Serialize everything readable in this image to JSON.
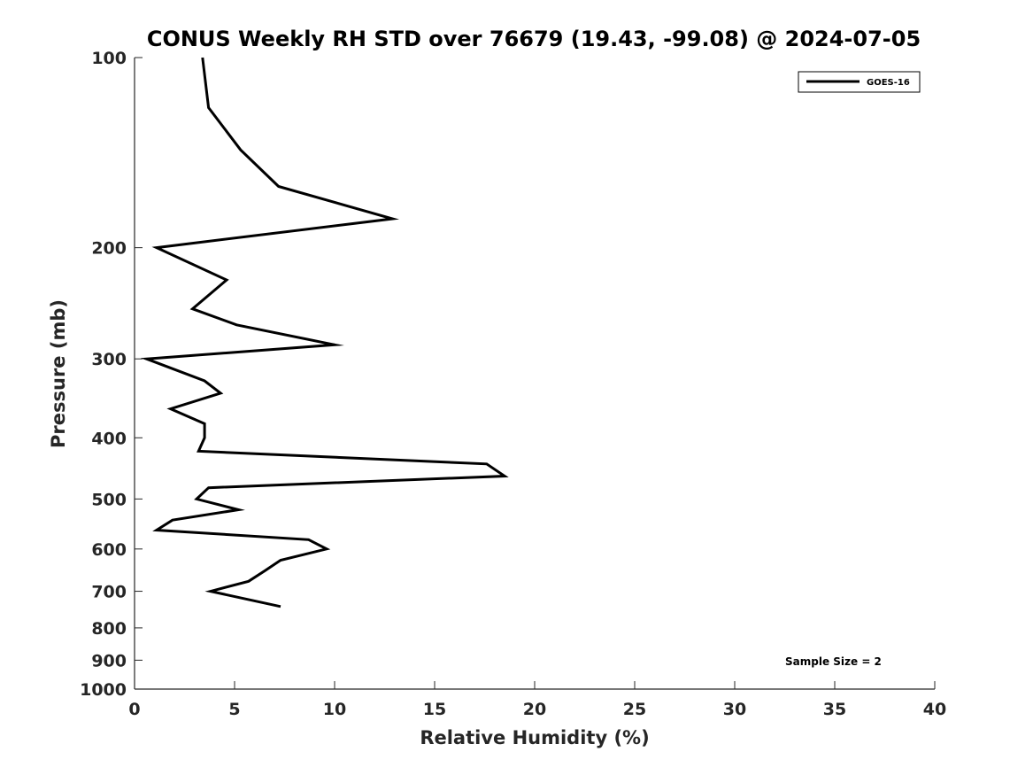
{
  "chart_data": {
    "type": "line",
    "title": "CONUS Weekly RH STD over 76679 (19.43, -99.08) @ 2024-07-05",
    "xlabel": "Relative Humidity (%)",
    "ylabel": "Pressure (mb)",
    "xlim": [
      0,
      40
    ],
    "ylim": [
      100,
      1000
    ],
    "y_scale": "log",
    "y_reversed": true,
    "x_ticks": [
      "0",
      "5",
      "10",
      "15",
      "20",
      "25",
      "30",
      "35",
      "40"
    ],
    "y_ticks": [
      "100",
      "200",
      "300",
      "400",
      "500",
      "600",
      "700",
      "800",
      "900",
      "1000"
    ],
    "grid": false,
    "legend_position": "top-right",
    "series": [
      {
        "name": "GOES-16",
        "color": "#000000",
        "x": [
          3.4,
          3.7,
          5.3,
          7.2,
          12.9,
          1.1,
          4.6,
          2.9,
          5.1,
          10.0,
          0.6,
          3.5,
          4.3,
          1.8,
          3.5,
          3.5,
          3.2,
          17.6,
          18.5,
          3.7,
          3.1,
          5.2,
          1.9,
          1.1,
          8.7,
          9.6,
          7.3,
          6.5,
          5.7,
          3.8,
          7.3
        ],
        "y": [
          100,
          120,
          140,
          160,
          180,
          200,
          225,
          250,
          265,
          285,
          300,
          325,
          340,
          360,
          380,
          400,
          420,
          440,
          460,
          480,
          500,
          520,
          540,
          560,
          580,
          600,
          625,
          650,
          675,
          700,
          740
        ]
      }
    ],
    "annotation": "Sample Size = 2"
  }
}
